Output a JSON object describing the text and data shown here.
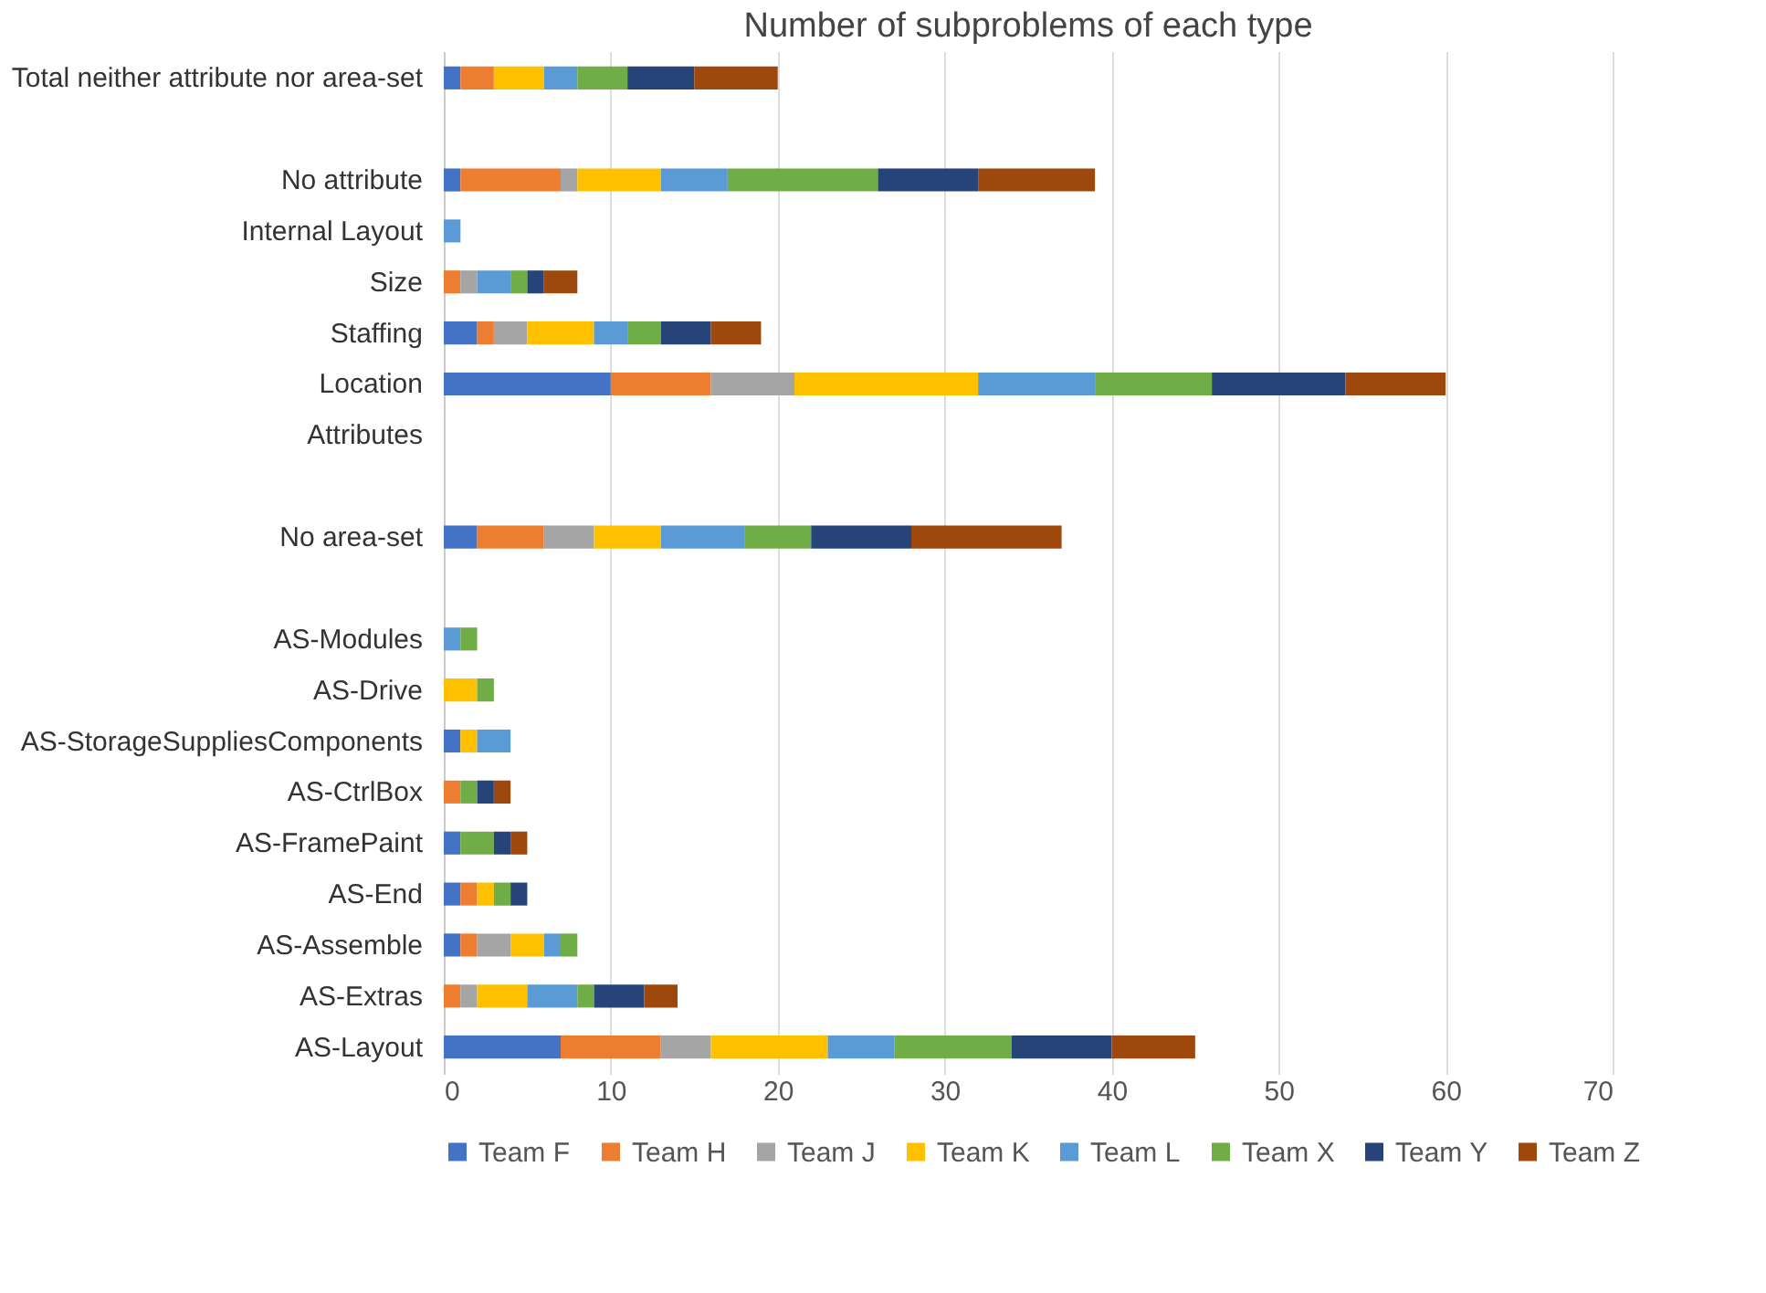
{
  "chart_data": {
    "type": "bar",
    "orientation": "horizontal",
    "stacked": true,
    "title": "Number of subproblems of each type",
    "categories": [
      "Total neither attribute nor area-set",
      null,
      "No attribute",
      "Internal Layout",
      "Size",
      "Staffing",
      "Location",
      "Attributes",
      null,
      "No area-set",
      null,
      "AS-Modules",
      "AS-Drive",
      "AS-StorageSuppliesComponents",
      "AS-CtrlBox",
      "AS-FramePaint",
      "AS-End",
      "AS-Assemble",
      "AS-Extras",
      "AS-Layout"
    ],
    "series": [
      {
        "name": "Team F",
        "color": "#4472c4",
        "values": [
          1,
          null,
          1,
          0,
          0,
          2,
          10,
          null,
          null,
          2,
          null,
          0,
          0,
          1,
          0,
          1,
          1,
          1,
          0,
          7
        ]
      },
      {
        "name": "Team H",
        "color": "#ed7d31",
        "values": [
          2,
          null,
          6,
          0,
          1,
          1,
          6,
          null,
          null,
          4,
          null,
          0,
          0,
          0,
          1,
          0,
          1,
          1,
          1,
          6
        ]
      },
      {
        "name": "Team J",
        "color": "#a5a5a5",
        "values": [
          0,
          null,
          1,
          0,
          1,
          2,
          5,
          null,
          null,
          3,
          null,
          0,
          0,
          0,
          0,
          0,
          0,
          2,
          1,
          3
        ]
      },
      {
        "name": "Team K",
        "color": "#ffc000",
        "values": [
          3,
          null,
          5,
          0,
          0,
          4,
          11,
          null,
          null,
          4,
          null,
          0,
          2,
          1,
          0,
          0,
          1,
          2,
          3,
          7
        ]
      },
      {
        "name": "Team L",
        "color": "#5b9bd5",
        "values": [
          2,
          null,
          4,
          1,
          2,
          2,
          7,
          null,
          null,
          5,
          null,
          1,
          0,
          2,
          0,
          0,
          0,
          1,
          3,
          4
        ]
      },
      {
        "name": "Team X",
        "color": "#70ad47",
        "values": [
          3,
          null,
          9,
          0,
          1,
          2,
          7,
          null,
          null,
          4,
          null,
          1,
          1,
          0,
          1,
          2,
          1,
          1,
          1,
          7
        ]
      },
      {
        "name": "Team Y",
        "color": "#264478",
        "values": [
          4,
          null,
          6,
          0,
          1,
          3,
          8,
          null,
          null,
          6,
          null,
          0,
          0,
          0,
          1,
          1,
          1,
          0,
          3,
          6
        ]
      },
      {
        "name": "Team Z",
        "color": "#9e480e",
        "values": [
          5,
          null,
          7,
          0,
          2,
          3,
          6,
          null,
          null,
          9,
          null,
          0,
          0,
          0,
          1,
          1,
          0,
          0,
          2,
          5
        ]
      }
    ],
    "xlim": [
      0,
      70
    ],
    "xticks": [
      0,
      10,
      20,
      30,
      40,
      50,
      60,
      70
    ],
    "grid": "x",
    "legend": "bottom"
  }
}
